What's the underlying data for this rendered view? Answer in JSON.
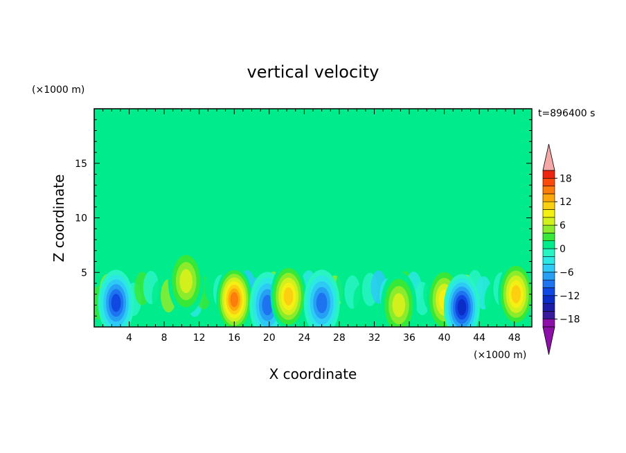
{
  "chart_data": {
    "type": "heatmap",
    "title": "vertical velocity",
    "xlabel": "X coordinate",
    "ylabel": "Z coordinate",
    "x_unit": "(×1000 m)",
    "y_unit": "(×1000 m)",
    "time_label": "t=896400 s",
    "xlim": [
      0,
      50
    ],
    "ylim": [
      0,
      20
    ],
    "x_ticks": [
      "4",
      "8",
      "12",
      "16",
      "20",
      "24",
      "28",
      "32",
      "36",
      "40",
      "44",
      "48"
    ],
    "y_ticks": [
      "5",
      "10",
      "15"
    ],
    "colorbar": {
      "min": -20,
      "max": 20,
      "step": 2,
      "labels": [
        "18",
        "12",
        "6",
        "0",
        "−6",
        "−12",
        "−18"
      ],
      "label_values": [
        18,
        12,
        6,
        0,
        -6,
        -12,
        -18
      ],
      "colors": [
        "#8c0fa8",
        "#3a1a9c",
        "#1c1ca8",
        "#0c2cc8",
        "#1048e4",
        "#1e74f0",
        "#26a0f4",
        "#2ccaf4",
        "#2ce8e4",
        "#28f4c4",
        "#00ec8c",
        "#38e838",
        "#8cec2c",
        "#d2f01c",
        "#f4f014",
        "#fcd010",
        "#fca80c",
        "#fc7c0c",
        "#fc4a0c",
        "#ec2410"
      ],
      "over_color": "#f4a8a8",
      "under_color": "#8c0fa8"
    },
    "background_level_color": "#00ec8c",
    "features": [
      {
        "kind": "downdraft",
        "x": 2.5,
        "z": 2.2,
        "peak": -12
      },
      {
        "kind": "updraft",
        "x": 10.5,
        "z": 4.2,
        "peak": 8
      },
      {
        "kind": "updraft",
        "x": 16.0,
        "z": 2.5,
        "peak": 16
      },
      {
        "kind": "downdraft",
        "x": 19.8,
        "z": 2.0,
        "peak": -10
      },
      {
        "kind": "updraft",
        "x": 22.2,
        "z": 2.8,
        "peak": 12
      },
      {
        "kind": "downdraft",
        "x": 26.0,
        "z": 2.2,
        "peak": -10
      },
      {
        "kind": "updraft",
        "x": 34.8,
        "z": 2.0,
        "peak": 8
      },
      {
        "kind": "updraft",
        "x": 40.0,
        "z": 2.5,
        "peak": 10
      },
      {
        "kind": "downdraft",
        "x": 42.0,
        "z": 1.8,
        "peak": -14
      },
      {
        "kind": "updraft",
        "x": 48.2,
        "z": 3.0,
        "peak": 12
      }
    ]
  }
}
